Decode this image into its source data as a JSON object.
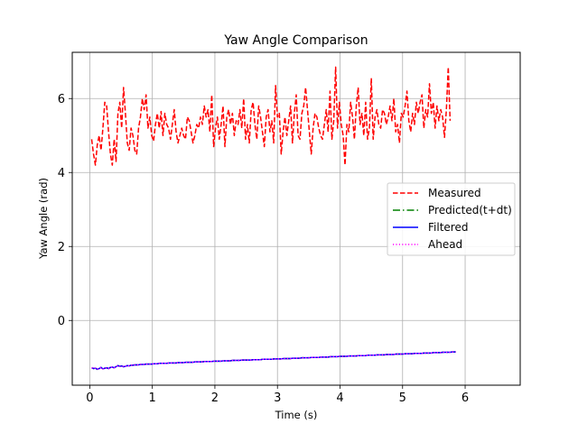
{
  "chart_data": {
    "type": "line",
    "title": "Yaw Angle Comparison",
    "xlabel": "Time (s)",
    "ylabel": "Yaw Angle (rad)",
    "xlim": [
      -0.28,
      6.88
    ],
    "ylim": [
      -1.75,
      7.25
    ],
    "xticks": [
      0,
      1,
      2,
      3,
      4,
      5,
      6
    ],
    "yticks": [
      0,
      2,
      4,
      6
    ],
    "grid": true,
    "legend": "center-right",
    "x_start": 0.03,
    "x_step": 0.03,
    "series": [
      {
        "name": "Measured",
        "color": "#ff0000",
        "style": "dashed",
        "values": [
          4.9,
          4.5,
          4.2,
          4.75,
          5.0,
          4.6,
          5.2,
          5.9,
          5.8,
          5.1,
          4.5,
          4.2,
          4.9,
          4.3,
          5.6,
          5.9,
          5.2,
          6.3,
          5.6,
          4.8,
          4.6,
          5.2,
          5.0,
          4.6,
          4.5,
          5.2,
          5.5,
          6.0,
          5.7,
          6.1,
          5.2,
          5.5,
          5.0,
          4.85,
          5.3,
          5.6,
          5.2,
          5.65,
          5.0,
          5.6,
          5.3,
          5.2,
          4.9,
          5.3,
          5.7,
          5.1,
          4.8,
          5.0,
          5.2,
          5.0,
          4.9,
          5.5,
          5.4,
          5.1,
          4.8,
          5.0,
          5.3,
          5.2,
          5.5,
          5.3,
          5.8,
          5.5,
          5.7,
          5.1,
          6.1,
          4.7,
          5.2,
          5.5,
          4.9,
          5.3,
          5.8,
          4.7,
          5.5,
          5.7,
          5.3,
          5.6,
          5.0,
          5.4,
          5.3,
          5.7,
          5.2,
          6.0,
          4.9,
          5.3,
          4.8,
          5.7,
          5.9,
          5.3,
          4.9,
          5.8,
          5.5,
          5.1,
          4.7,
          5.5,
          5.7,
          5.1,
          5.4,
          4.8,
          6.35,
          5.5,
          5.6,
          4.5,
          5.1,
          5.5,
          5.0,
          5.4,
          5.8,
          4.8,
          5.6,
          6.1,
          5.0,
          4.9,
          5.6,
          5.8,
          6.3,
          5.7,
          5.1,
          4.5,
          5.2,
          5.6,
          5.5,
          5.2,
          5.0,
          4.9,
          5.3,
          5.7,
          5.1,
          6.2,
          4.9,
          5.4,
          6.85,
          5.2,
          5.9,
          5.3,
          5.0,
          4.2,
          5.3,
          5.1,
          5.9,
          5.5,
          4.9,
          5.8,
          6.3,
          5.3,
          5.6,
          5.0,
          5.9,
          4.9,
          5.2,
          6.55,
          4.9,
          5.5,
          5.7,
          5.3,
          5.2,
          5.7,
          5.6,
          5.3,
          5.5,
          5.8,
          5.4,
          6.0,
          5.1,
          5.3,
          4.8,
          5.6,
          5.5,
          5.8,
          6.2,
          5.4,
          5.1,
          5.6,
          5.3,
          5.9,
          5.6,
          5.9,
          6.1,
          5.2,
          5.7,
          5.5,
          6.4,
          5.6,
          5.9,
          5.2,
          5.8,
          5.4,
          5.7,
          5.5,
          4.95,
          5.7,
          6.85,
          5.4
        ]
      },
      {
        "name": "Predicted(t+dt)",
        "color": "#008000",
        "style": "dashdot",
        "values": [
          -1.28,
          -1.3,
          -1.29,
          -1.32,
          -1.3,
          -1.27,
          -1.31,
          -1.29,
          -1.28,
          -1.3,
          -1.27,
          -1.26,
          -1.28,
          -1.25,
          -1.22,
          -1.24,
          -1.23,
          -1.25,
          -1.24,
          -1.22,
          -1.23,
          -1.21,
          -1.21,
          -1.2,
          -1.2,
          -1.2,
          -1.19,
          -1.19,
          -1.19,
          -1.18,
          -1.18,
          -1.18,
          -1.18,
          -1.17,
          -1.17,
          -1.17,
          -1.16,
          -1.16,
          -1.16,
          -1.16,
          -1.16,
          -1.15,
          -1.15,
          -1.15,
          -1.15,
          -1.15,
          -1.14,
          -1.14,
          -1.14,
          -1.14,
          -1.13,
          -1.13,
          -1.13,
          -1.13,
          -1.13,
          -1.12,
          -1.12,
          -1.12,
          -1.12,
          -1.12,
          -1.11,
          -1.11,
          -1.11,
          -1.11,
          -1.11,
          -1.1,
          -1.1,
          -1.1,
          -1.1,
          -1.1,
          -1.09,
          -1.09,
          -1.09,
          -1.09,
          -1.09,
          -1.08,
          -1.08,
          -1.08,
          -1.08,
          -1.08,
          -1.07,
          -1.07,
          -1.07,
          -1.07,
          -1.07,
          -1.07,
          -1.06,
          -1.06,
          -1.06,
          -1.06,
          -1.06,
          -1.05,
          -1.05,
          -1.05,
          -1.05,
          -1.05,
          -1.05,
          -1.04,
          -1.04,
          -1.04,
          -1.04,
          -1.04,
          -1.03,
          -1.03,
          -1.03,
          -1.03,
          -1.03,
          -1.02,
          -1.02,
          -1.02,
          -1.02,
          -1.02,
          -1.01,
          -1.01,
          -1.01,
          -1.01,
          -1.01,
          -1.0,
          -1.0,
          -1.0,
          -1.0,
          -1.0,
          -0.99,
          -0.99,
          -0.99,
          -0.99,
          -0.99,
          -0.98,
          -0.98,
          -0.98,
          -0.98,
          -0.98,
          -0.97,
          -0.97,
          -0.97,
          -0.97,
          -0.97,
          -0.96,
          -0.96,
          -0.96,
          -0.96,
          -0.96,
          -0.95,
          -0.95,
          -0.95,
          -0.95,
          -0.95,
          -0.94,
          -0.94,
          -0.94,
          -0.94,
          -0.94,
          -0.93,
          -0.93,
          -0.93,
          -0.93,
          -0.93,
          -0.92,
          -0.92,
          -0.92,
          -0.92,
          -0.92,
          -0.91,
          -0.91,
          -0.91,
          -0.91,
          -0.91,
          -0.9,
          -0.9,
          -0.9,
          -0.9,
          -0.9,
          -0.89,
          -0.89,
          -0.89,
          -0.89,
          -0.89,
          -0.88,
          -0.88,
          -0.88,
          -0.88,
          -0.88,
          -0.87,
          -0.87,
          -0.87,
          -0.87,
          -0.87,
          -0.86,
          -0.86,
          -0.86,
          -0.86,
          -0.86,
          -0.85,
          -0.85,
          -0.85
        ]
      },
      {
        "name": "Filtered",
        "color": "#0000ff",
        "style": "solid",
        "values": [
          -1.28,
          -1.3,
          -1.29,
          -1.32,
          -1.3,
          -1.27,
          -1.31,
          -1.29,
          -1.28,
          -1.3,
          -1.27,
          -1.26,
          -1.28,
          -1.25,
          -1.22,
          -1.24,
          -1.23,
          -1.25,
          -1.24,
          -1.22,
          -1.23,
          -1.21,
          -1.21,
          -1.2,
          -1.2,
          -1.2,
          -1.19,
          -1.19,
          -1.19,
          -1.18,
          -1.18,
          -1.18,
          -1.18,
          -1.17,
          -1.17,
          -1.17,
          -1.16,
          -1.16,
          -1.16,
          -1.16,
          -1.16,
          -1.15,
          -1.15,
          -1.15,
          -1.15,
          -1.15,
          -1.14,
          -1.14,
          -1.14,
          -1.14,
          -1.13,
          -1.13,
          -1.13,
          -1.13,
          -1.13,
          -1.12,
          -1.12,
          -1.12,
          -1.12,
          -1.12,
          -1.11,
          -1.11,
          -1.11,
          -1.11,
          -1.11,
          -1.1,
          -1.1,
          -1.1,
          -1.1,
          -1.1,
          -1.09,
          -1.09,
          -1.09,
          -1.09,
          -1.09,
          -1.08,
          -1.08,
          -1.08,
          -1.08,
          -1.08,
          -1.07,
          -1.07,
          -1.07,
          -1.07,
          -1.07,
          -1.07,
          -1.06,
          -1.06,
          -1.06,
          -1.06,
          -1.06,
          -1.05,
          -1.05,
          -1.05,
          -1.05,
          -1.05,
          -1.05,
          -1.04,
          -1.04,
          -1.04,
          -1.04,
          -1.04,
          -1.03,
          -1.03,
          -1.03,
          -1.03,
          -1.03,
          -1.02,
          -1.02,
          -1.02,
          -1.02,
          -1.02,
          -1.01,
          -1.01,
          -1.01,
          -1.01,
          -1.01,
          -1.0,
          -1.0,
          -1.0,
          -1.0,
          -1.0,
          -0.99,
          -0.99,
          -0.99,
          -0.99,
          -0.99,
          -0.98,
          -0.98,
          -0.98,
          -0.98,
          -0.98,
          -0.97,
          -0.97,
          -0.97,
          -0.97,
          -0.97,
          -0.96,
          -0.96,
          -0.96,
          -0.96,
          -0.96,
          -0.95,
          -0.95,
          -0.95,
          -0.95,
          -0.95,
          -0.94,
          -0.94,
          -0.94,
          -0.94,
          -0.94,
          -0.93,
          -0.93,
          -0.93,
          -0.93,
          -0.93,
          -0.92,
          -0.92,
          -0.92,
          -0.92,
          -0.92,
          -0.91,
          -0.91,
          -0.91,
          -0.91,
          -0.91,
          -0.9,
          -0.9,
          -0.9,
          -0.9,
          -0.9,
          -0.89,
          -0.89,
          -0.89,
          -0.89,
          -0.89,
          -0.88,
          -0.88,
          -0.88,
          -0.88,
          -0.88,
          -0.87,
          -0.87,
          -0.87,
          -0.87,
          -0.87,
          -0.86,
          -0.86,
          -0.86,
          -0.86,
          -0.86,
          -0.85,
          -0.85,
          -0.85
        ]
      },
      {
        "name": "Ahead",
        "color": "#ff00ff",
        "style": "dotted",
        "values": [
          -1.28,
          -1.3,
          -1.29,
          -1.32,
          -1.3,
          -1.27,
          -1.31,
          -1.29,
          -1.28,
          -1.3,
          -1.27,
          -1.26,
          -1.28,
          -1.25,
          -1.22,
          -1.24,
          -1.23,
          -1.25,
          -1.24,
          -1.22,
          -1.23,
          -1.21,
          -1.21,
          -1.2,
          -1.2,
          -1.2,
          -1.19,
          -1.19,
          -1.19,
          -1.18,
          -1.18,
          -1.18,
          -1.18,
          -1.17,
          -1.17,
          -1.17,
          -1.16,
          -1.16,
          -1.16,
          -1.16,
          -1.16,
          -1.15,
          -1.15,
          -1.15,
          -1.15,
          -1.15,
          -1.14,
          -1.14,
          -1.14,
          -1.14,
          -1.13,
          -1.13,
          -1.13,
          -1.13,
          -1.13,
          -1.12,
          -1.12,
          -1.12,
          -1.12,
          -1.12,
          -1.11,
          -1.11,
          -1.11,
          -1.11,
          -1.11,
          -1.1,
          -1.1,
          -1.1,
          -1.1,
          -1.1,
          -1.09,
          -1.09,
          -1.09,
          -1.09,
          -1.09,
          -1.08,
          -1.08,
          -1.08,
          -1.08,
          -1.08,
          -1.07,
          -1.07,
          -1.07,
          -1.07,
          -1.07,
          -1.07,
          -1.06,
          -1.06,
          -1.06,
          -1.06,
          -1.06,
          -1.05,
          -1.05,
          -1.05,
          -1.05,
          -1.05,
          -1.05,
          -1.04,
          -1.04,
          -1.04,
          -1.04,
          -1.04,
          -1.03,
          -1.03,
          -1.03,
          -1.03,
          -1.03,
          -1.02,
          -1.02,
          -1.02,
          -1.02,
          -1.02,
          -1.01,
          -1.01,
          -1.01,
          -1.01,
          -1.01,
          -1.0,
          -1.0,
          -1.0,
          -1.0,
          -1.0,
          -0.99,
          -0.99,
          -0.99,
          -0.99,
          -0.99,
          -0.98,
          -0.98,
          -0.98,
          -0.98,
          -0.98,
          -0.97,
          -0.97,
          -0.97,
          -0.97,
          -0.97,
          -0.96,
          -0.96,
          -0.96,
          -0.96,
          -0.96,
          -0.95,
          -0.95,
          -0.95,
          -0.95,
          -0.95,
          -0.94,
          -0.94,
          -0.94,
          -0.94,
          -0.94,
          -0.93,
          -0.93,
          -0.93,
          -0.93,
          -0.93,
          -0.92,
          -0.92,
          -0.92,
          -0.92,
          -0.92,
          -0.91,
          -0.91,
          -0.91,
          -0.91,
          -0.91,
          -0.9,
          -0.9,
          -0.9,
          -0.9,
          -0.9,
          -0.89,
          -0.89,
          -0.89,
          -0.89,
          -0.89,
          -0.88,
          -0.88,
          -0.88,
          -0.88,
          -0.88,
          -0.87,
          -0.87,
          -0.87,
          -0.87,
          -0.87,
          -0.86,
          -0.86,
          -0.86,
          -0.86,
          -0.86,
          -0.85,
          -0.85,
          -0.85
        ]
      }
    ]
  }
}
